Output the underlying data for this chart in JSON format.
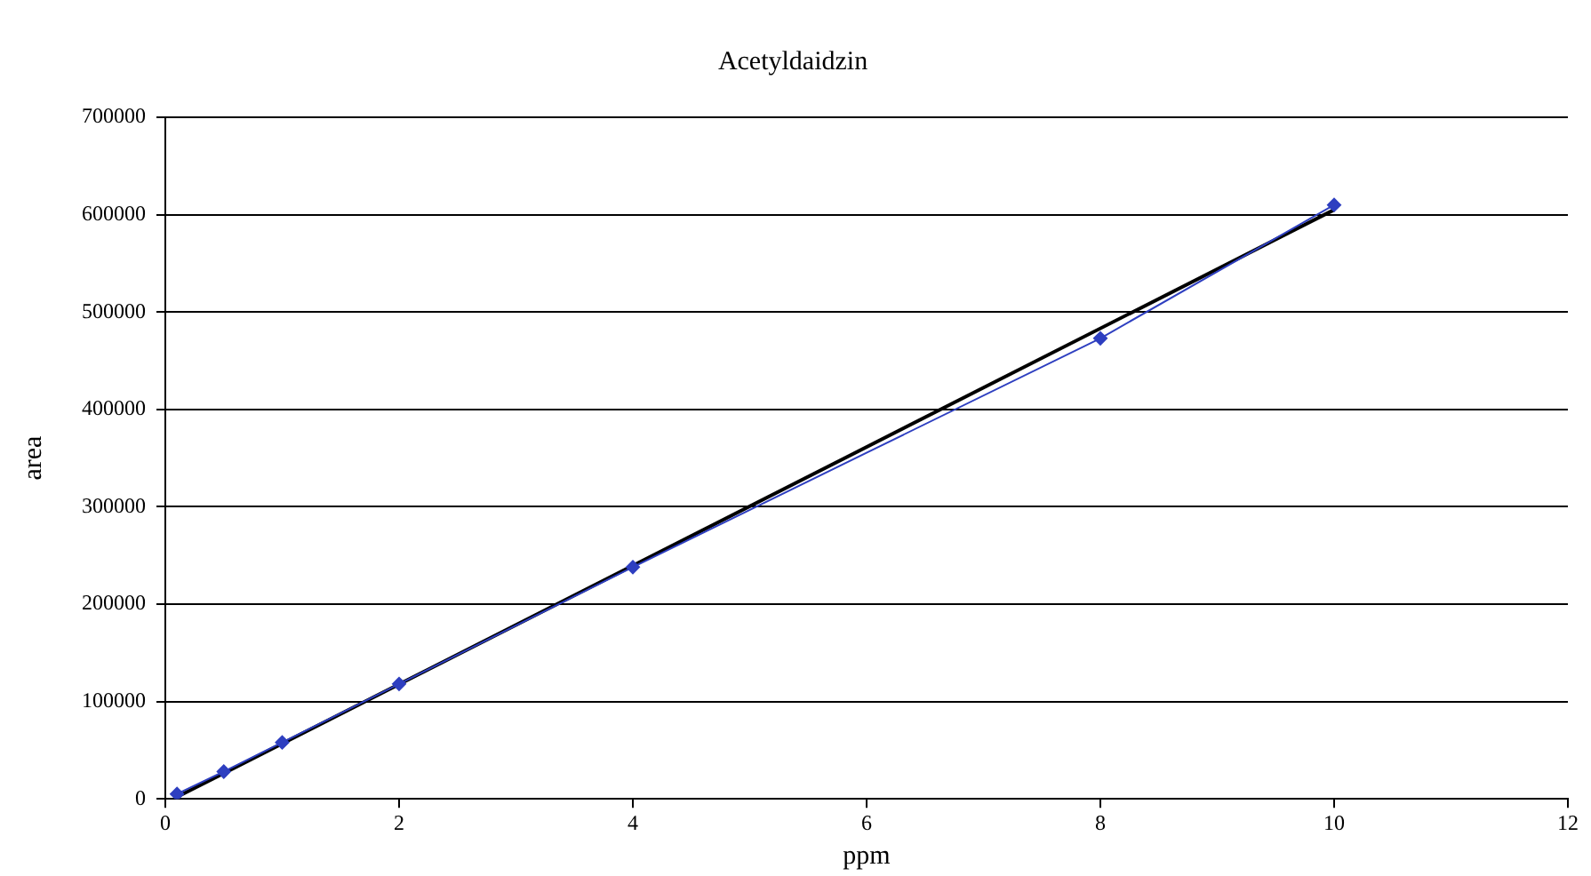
{
  "chart_data": {
    "type": "scatter",
    "title": "Acetyldaidzin",
    "xlabel": "ppm",
    "ylabel": "area",
    "series": [
      {
        "type": "line",
        "color": "#2e3fc0",
        "marker": "diamond",
        "x": [
          0.1,
          0.5,
          1,
          2,
          4,
          8,
          10
        ],
        "values": [
          5000,
          28000,
          58000,
          118000,
          238000,
          473000,
          610000
        ]
      },
      {
        "type": "line",
        "color": "#000000",
        "marker": "none",
        "x": [
          0.1,
          10
        ],
        "values": [
          2000,
          605000
        ]
      }
    ],
    "xlim": [
      0,
      12
    ],
    "xticks": [
      0,
      2,
      4,
      6,
      8,
      10,
      12
    ],
    "ylim": [
      0,
      700000
    ],
    "yticks": [
      0,
      100000,
      200000,
      300000,
      400000,
      500000,
      600000,
      700000
    ],
    "grid": "y",
    "legend": false
  }
}
